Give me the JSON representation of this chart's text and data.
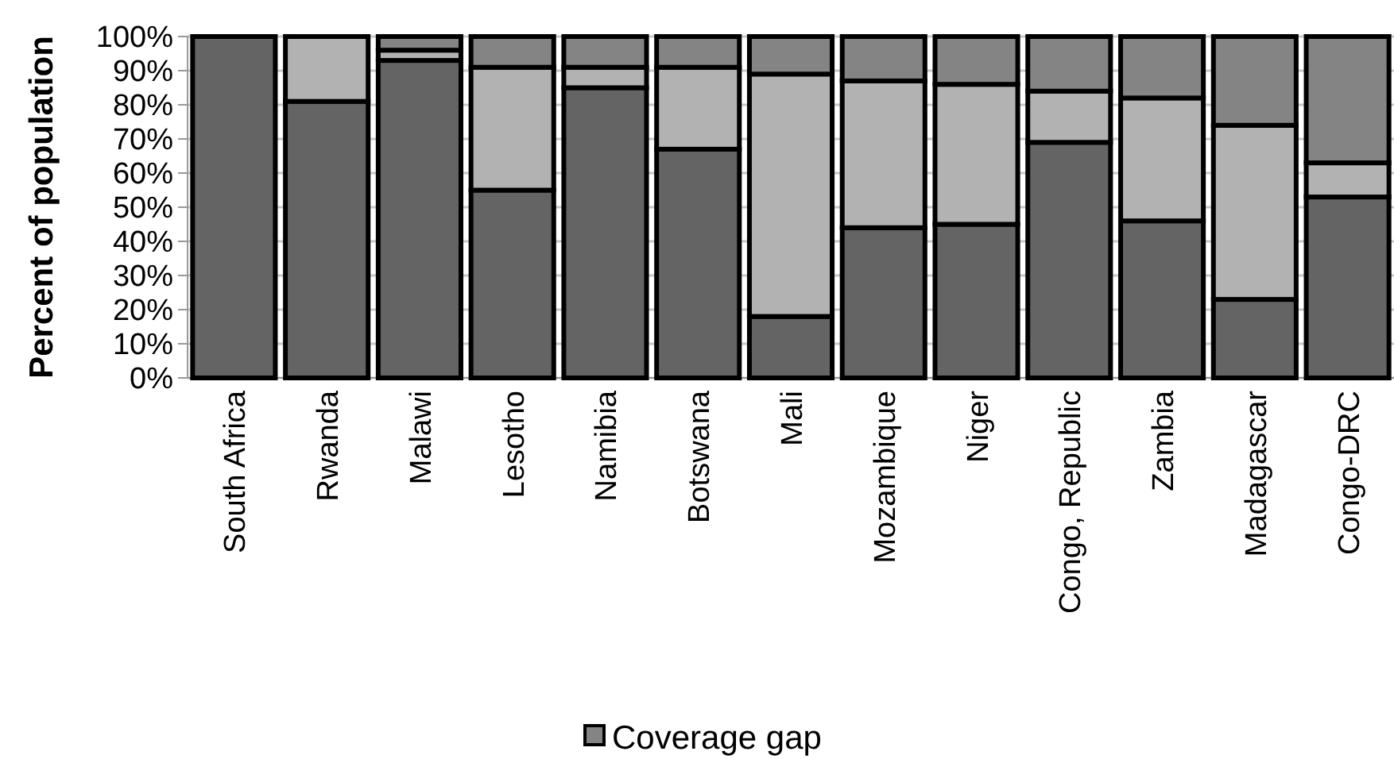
{
  "chart_data": {
    "type": "bar",
    "stacked": true,
    "ylabel": "Percent of population",
    "categories": [
      "South Africa",
      "Rwanda",
      "Malawi",
      "Lesotho",
      "Namibia",
      "Botswana",
      "Mali",
      "Mozambique",
      "Niger",
      "Congo, Republic",
      "Zambia",
      "Madagascar",
      "Congo-DRC"
    ],
    "series": [
      {
        "color": "#646464",
        "values": [
          100,
          81,
          93,
          55,
          85,
          67,
          18,
          44,
          45,
          69,
          46,
          23,
          53
        ]
      },
      {
        "color": "#b2b2b2",
        "values": [
          0,
          19,
          3,
          36,
          6,
          24,
          71,
          43,
          41,
          15,
          36,
          51,
          10
        ]
      },
      {
        "name": "Coverage gap",
        "color": "#848484",
        "values": [
          0,
          0,
          4,
          9,
          9,
          9,
          11,
          13,
          14,
          16,
          18,
          26,
          37
        ]
      }
    ],
    "ylim": [
      0,
      100
    ],
    "yticks": [
      {
        "value": 0,
        "label": "0%"
      },
      {
        "value": 10,
        "label": "10%"
      },
      {
        "value": 20,
        "label": "20%"
      },
      {
        "value": 30,
        "label": "30%"
      },
      {
        "value": 40,
        "label": "40%"
      },
      {
        "value": 50,
        "label": "50%"
      },
      {
        "value": 60,
        "label": "60%"
      },
      {
        "value": 70,
        "label": "70%"
      },
      {
        "value": 80,
        "label": "80%"
      },
      {
        "value": 90,
        "label": "90%"
      },
      {
        "value": 100,
        "label": "100%"
      }
    ],
    "grid": "y",
    "legend": "bottom"
  }
}
